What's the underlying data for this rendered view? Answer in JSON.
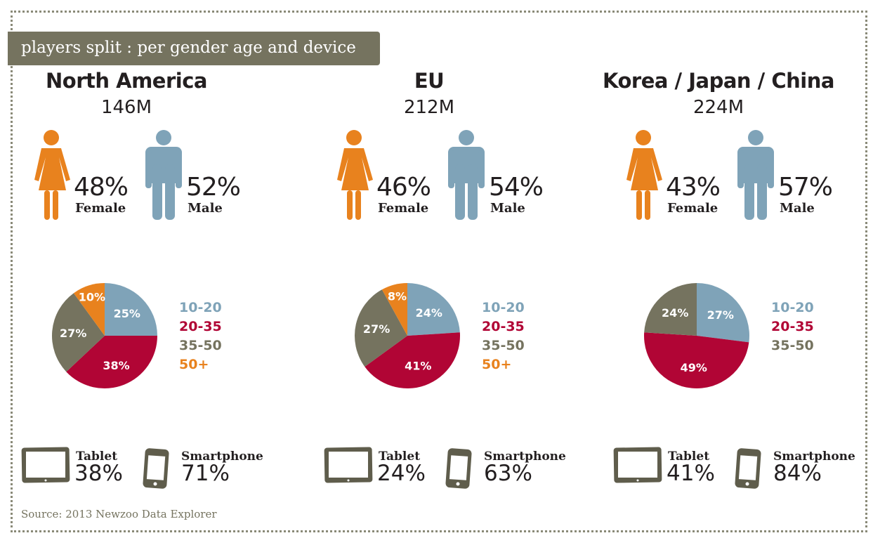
{
  "header": {
    "title": "players split : per gender age and device"
  },
  "colors": {
    "female": "#e8821e",
    "male": "#7fa3b8",
    "10-20": "#7fa3b8",
    "20-35": "#b10535",
    "35-50": "#75735f",
    "50+": "#e8821e",
    "device": "#5f5d4c"
  },
  "labels": {
    "female": "Female",
    "male": "Male",
    "tablet": "Tablet",
    "smartphone": "Smartphone"
  },
  "chart_data": [
    {
      "type": "pie",
      "region": "North America",
      "total": "146M",
      "gender": {
        "female": "48%",
        "male": "52%"
      },
      "categories": [
        "10-20",
        "20-35",
        "35-50",
        "50+"
      ],
      "values": [
        25,
        38,
        27,
        10
      ],
      "value_labels": [
        "25%",
        "38%",
        "27%",
        "10%"
      ],
      "devices": {
        "tablet": "38%",
        "smartphone": "71%"
      }
    },
    {
      "type": "pie",
      "region": "EU",
      "total": "212M",
      "gender": {
        "female": "46%",
        "male": "54%"
      },
      "categories": [
        "10-20",
        "20-35",
        "35-50",
        "50+"
      ],
      "values": [
        24,
        41,
        27,
        8
      ],
      "value_labels": [
        "24%",
        "41%",
        "27%",
        "8%"
      ],
      "devices": {
        "tablet": "24%",
        "smartphone": "63%"
      }
    },
    {
      "type": "pie",
      "region": "Korea / Japan / China",
      "total": "224M",
      "gender": {
        "female": "43%",
        "male": "57%"
      },
      "categories": [
        "10-20",
        "20-35",
        "35-50"
      ],
      "values": [
        27,
        49,
        24
      ],
      "value_labels": [
        "27%",
        "49%",
        "24%"
      ],
      "devices": {
        "tablet": "41%",
        "smartphone": "84%"
      }
    }
  ],
  "footer": {
    "source": "Source: 2013 Newzoo Data Explorer"
  }
}
